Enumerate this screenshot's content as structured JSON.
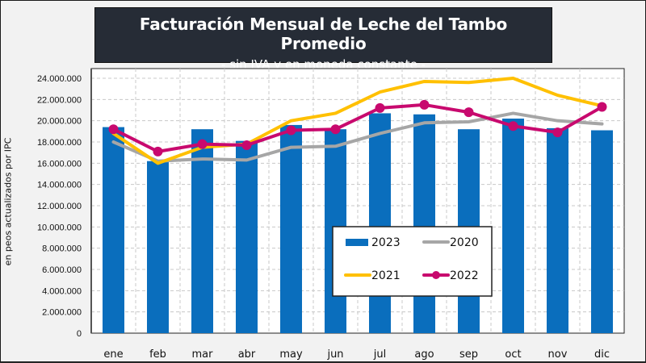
{
  "title": "Facturación Mensual de Leche del Tambo Promedio",
  "subtitle": "- sin IVA y en moneda constante -",
  "chart_data": {
    "type": "bar",
    "title": "Facturación Mensual de Leche del Tambo Promedio",
    "subtitle": "- sin IVA y en moneda constante -",
    "xlabel": "",
    "ylabel": "en peos actualizados por IPC",
    "categories": [
      "ene",
      "feb",
      "mar",
      "abr",
      "may",
      "jun",
      "jul",
      "ago",
      "sep",
      "oct",
      "nov",
      "dic"
    ],
    "ylim": [
      0,
      25000000
    ],
    "yticks": [
      0,
      2000000,
      4000000,
      6000000,
      8000000,
      10000000,
      12000000,
      14000000,
      16000000,
      18000000,
      20000000,
      22000000,
      24000000
    ],
    "ytick_labels": [
      "0",
      "2.000.000",
      "4.000.000",
      "6.000.000",
      "8.000.000",
      "10.000.000",
      "12.000.000",
      "14.000.000",
      "16.000.000",
      "18.000.000",
      "20.000.000",
      "22.000.000",
      "24.000.000"
    ],
    "grid": true,
    "legend_position": "center-right",
    "series": [
      {
        "name": "2023",
        "type": "bar",
        "color": "#0a6ebd",
        "values": [
          19400000,
          16200000,
          19200000,
          18100000,
          19600000,
          19200000,
          20700000,
          20600000,
          19200000,
          20200000,
          19300000,
          19100000
        ]
      },
      {
        "name": "2020",
        "type": "line",
        "color": "#a6a6a6",
        "marker": false,
        "values": [
          18000000,
          16200000,
          16400000,
          16300000,
          17500000,
          17600000,
          18800000,
          19800000,
          19900000,
          20700000,
          20000000,
          19700000
        ]
      },
      {
        "name": "2021",
        "type": "line",
        "color": "#ffc000",
        "marker": false,
        "values": [
          18800000,
          16000000,
          17500000,
          17800000,
          20000000,
          20700000,
          22700000,
          23700000,
          23600000,
          24000000,
          22400000,
          21400000
        ]
      },
      {
        "name": "2022",
        "type": "line",
        "color": "#c8096e",
        "marker": true,
        "values": [
          19200000,
          17100000,
          17800000,
          17700000,
          19100000,
          19200000,
          21200000,
          21500000,
          20800000,
          19500000,
          18900000,
          21300000
        ]
      }
    ],
    "legend": [
      {
        "label": "2023",
        "series": 0
      },
      {
        "label": "2020",
        "series": 1
      },
      {
        "label": "2021",
        "series": 2
      },
      {
        "label": "2022",
        "series": 3
      }
    ]
  }
}
